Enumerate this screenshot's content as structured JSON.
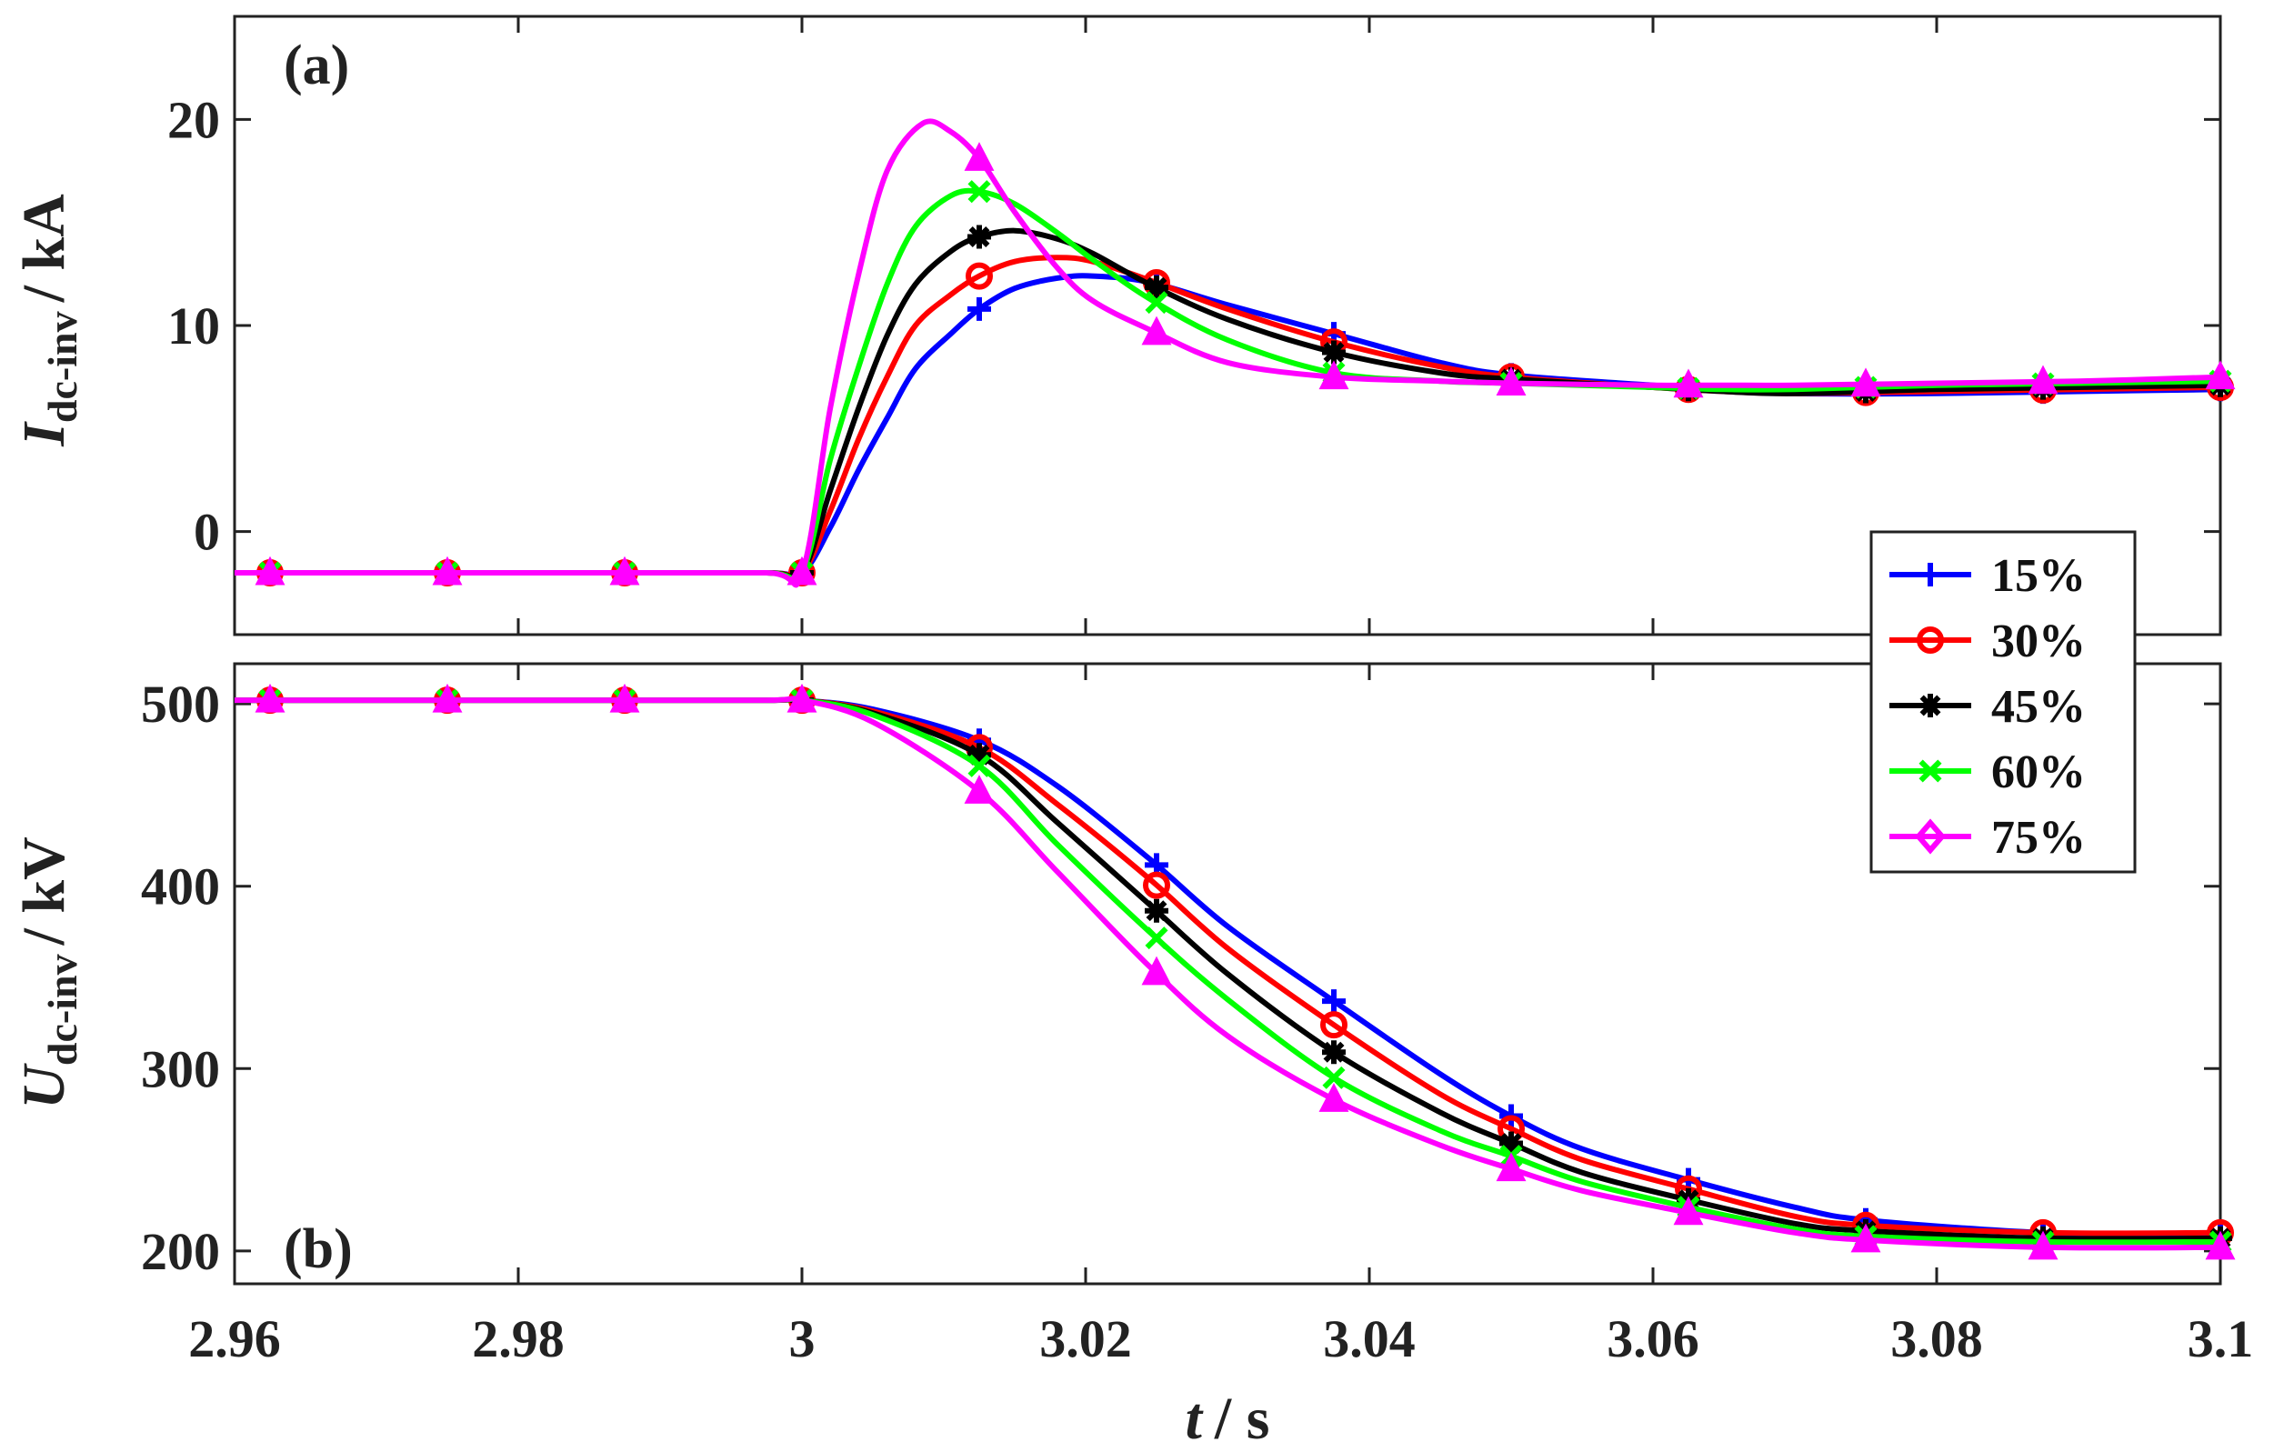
{
  "chart_data": [
    {
      "id": "a",
      "type": "line",
      "panel_label": "(a)",
      "ylabel": {
        "main": "I",
        "sub": "dc-inv",
        "unit": "/ kA"
      },
      "xlim": [
        2.96,
        3.1
      ],
      "ylim": [
        -5,
        25
      ],
      "yticks": [
        0,
        10,
        20
      ],
      "ytick_labels": [
        "0",
        "10",
        "20"
      ],
      "series": [
        {
          "name": "15%",
          "color": "#0000ff",
          "marker": "plus",
          "x": [
            2.96,
            2.9725,
            2.985,
            2.9975,
            3.0,
            3.002,
            3.004,
            3.006,
            3.008,
            3.0105,
            3.0125,
            3.015,
            3.018,
            3.0205,
            3.0245,
            3.03,
            3.0375,
            3.045,
            3.05,
            3.06,
            3.065,
            3.07,
            3.08,
            3.09,
            3.1
          ],
          "y": [
            -2,
            -2,
            -2,
            -2,
            -2,
            0.2,
            3.0,
            5.5,
            7.9,
            9.6,
            10.8,
            11.8,
            12.3,
            12.4,
            12.1,
            11.0,
            9.6,
            8.2,
            7.6,
            7.1,
            6.9,
            6.7,
            6.7,
            6.8,
            6.9
          ]
        },
        {
          "name": "30%",
          "color": "#ff0000",
          "marker": "circle",
          "x": [
            2.96,
            2.9725,
            2.985,
            2.9975,
            3.0,
            3.002,
            3.004,
            3.006,
            3.008,
            3.0105,
            3.0125,
            3.015,
            3.018,
            3.0205,
            3.0245,
            3.03,
            3.0375,
            3.045,
            3.05,
            3.06,
            3.065,
            3.07,
            3.08,
            3.09,
            3.1
          ],
          "y": [
            -2,
            -2,
            -2,
            -2,
            -2,
            1.0,
            4.5,
            7.5,
            10.0,
            11.5,
            12.4,
            13.1,
            13.3,
            13.1,
            12.2,
            10.8,
            9.2,
            8.0,
            7.5,
            7.0,
            6.8,
            6.7,
            6.8,
            6.9,
            7.0
          ]
        },
        {
          "name": "45%",
          "color": "#000000",
          "marker": "asterisk",
          "x": [
            2.96,
            2.9725,
            2.985,
            2.9975,
            3.0,
            3.002,
            3.004,
            3.006,
            3.008,
            3.0105,
            3.0125,
            3.015,
            3.018,
            3.0205,
            3.0245,
            3.03,
            3.0375,
            3.045,
            3.05,
            3.06,
            3.065,
            3.07,
            3.08,
            3.09,
            3.1
          ],
          "y": [
            -2,
            -2,
            -2,
            -2,
            -2,
            2.0,
            6.0,
            9.5,
            12.0,
            13.6,
            14.3,
            14.6,
            14.2,
            13.5,
            12.0,
            10.3,
            8.7,
            7.7,
            7.4,
            7.0,
            6.8,
            6.7,
            6.9,
            7.0,
            7.1
          ]
        },
        {
          "name": "60%",
          "color": "#00ff00",
          "marker": "x",
          "x": [
            2.96,
            2.9725,
            2.985,
            2.9975,
            3.0,
            3.002,
            3.004,
            3.006,
            3.008,
            3.0105,
            3.0125,
            3.015,
            3.018,
            3.0205,
            3.0245,
            3.03,
            3.0375,
            3.045,
            3.05,
            3.06,
            3.065,
            3.07,
            3.08,
            3.09,
            3.1
          ],
          "y": [
            -2,
            -2,
            -2,
            -2,
            -2,
            3.5,
            8.0,
            12.0,
            14.8,
            16.3,
            16.5,
            15.9,
            14.5,
            13.2,
            11.3,
            9.3,
            7.7,
            7.3,
            7.2,
            7.0,
            6.9,
            6.9,
            7.1,
            7.2,
            7.3
          ]
        },
        {
          "name": "75%",
          "color": "#ff00ff",
          "marker": "triangle",
          "x": [
            2.96,
            2.9725,
            2.985,
            2.9975,
            3.0,
            3.002,
            3.004,
            3.006,
            3.0085,
            3.0105,
            3.0125,
            3.015,
            3.018,
            3.0205,
            3.0245,
            3.03,
            3.0375,
            3.045,
            3.05,
            3.06,
            3.065,
            3.07,
            3.08,
            3.09,
            3.1
          ],
          "y": [
            -2,
            -2,
            -2,
            -2,
            -2,
            6.0,
            12.5,
            17.5,
            19.8,
            19.4,
            18.1,
            15.5,
            12.8,
            11.2,
            9.8,
            8.2,
            7.5,
            7.3,
            7.2,
            7.1,
            7.1,
            7.1,
            7.2,
            7.3,
            7.5
          ]
        }
      ]
    },
    {
      "id": "b",
      "type": "line",
      "panel_label": "(b)",
      "ylabel": {
        "main": "U",
        "sub": "dc-inv",
        "unit": "/ kV"
      },
      "xlabel": {
        "main": "t",
        "unit": "/ s"
      },
      "xlim": [
        2.96,
        3.1
      ],
      "ylim": [
        182,
        522
      ],
      "xticks": [
        2.96,
        2.98,
        3.0,
        3.02,
        3.04,
        3.06,
        3.08,
        3.1
      ],
      "xtick_labels": [
        "2.96",
        "2.98",
        "3",
        "3.02",
        "3.04",
        "3.06",
        "3.08",
        "3.1"
      ],
      "yticks": [
        200,
        300,
        400,
        500
      ],
      "ytick_labels": [
        "200",
        "300",
        "400",
        "500"
      ],
      "series": [
        {
          "name": "15%",
          "color": "#0000ff",
          "marker": "plus",
          "x": [
            2.96,
            2.9725,
            2.985,
            2.9975,
            3.0,
            3.005,
            3.0125,
            3.018,
            3.0245,
            3.03,
            3.0375,
            3.045,
            3.05,
            3.055,
            3.0625,
            3.07,
            3.075,
            3.0875,
            3.1
          ],
          "y": [
            502,
            502,
            502,
            502,
            502,
            497,
            480,
            455,
            415,
            378,
            337,
            297,
            274,
            256,
            239,
            224,
            217,
            210,
            208
          ]
        },
        {
          "name": "30%",
          "color": "#ff0000",
          "marker": "circle",
          "x": [
            2.96,
            2.9725,
            2.985,
            2.9975,
            3.0,
            3.005,
            3.0125,
            3.018,
            3.0245,
            3.03,
            3.0375,
            3.045,
            3.05,
            3.055,
            3.0625,
            3.07,
            3.075,
            3.0875,
            3.1
          ],
          "y": [
            502,
            502,
            502,
            502,
            502,
            496,
            476,
            445,
            404,
            366,
            324,
            286,
            267,
            250,
            234,
            219,
            214,
            210,
            210
          ]
        },
        {
          "name": "45%",
          "color": "#000000",
          "marker": "asterisk",
          "x": [
            2.96,
            2.9725,
            2.985,
            2.9975,
            3.0,
            3.005,
            3.0125,
            3.018,
            3.0245,
            3.03,
            3.0375,
            3.045,
            3.05,
            3.055,
            3.0625,
            3.07,
            3.075,
            3.0875,
            3.1
          ],
          "y": [
            502,
            502,
            502,
            502,
            502,
            495,
            472,
            435,
            390,
            352,
            309,
            276,
            259,
            243,
            228,
            215,
            211,
            207,
            207
          ]
        },
        {
          "name": "60%",
          "color": "#00ff00",
          "marker": "x",
          "x": [
            2.96,
            2.9725,
            2.985,
            2.9975,
            3.0,
            3.005,
            3.0125,
            3.018,
            3.0245,
            3.03,
            3.0375,
            3.045,
            3.05,
            3.055,
            3.0625,
            3.07,
            3.075,
            3.0875,
            3.1
          ],
          "y": [
            502,
            502,
            502,
            502,
            502,
            494,
            466,
            423,
            375,
            338,
            295,
            266,
            252,
            238,
            224,
            212,
            208,
            205,
            205
          ]
        },
        {
          "name": "75%",
          "color": "#ff00ff",
          "marker": "triangle",
          "x": [
            2.96,
            2.9725,
            2.985,
            2.9975,
            3.0,
            3.005,
            3.0125,
            3.018,
            3.0245,
            3.03,
            3.0375,
            3.045,
            3.05,
            3.055,
            3.0625,
            3.07,
            3.075,
            3.0875,
            3.1
          ],
          "y": [
            502,
            502,
            502,
            502,
            502,
            490,
            452,
            408,
            356,
            318,
            283,
            258,
            245,
            233,
            221,
            210,
            206,
            202,
            202
          ]
        }
      ]
    }
  ],
  "legend": {
    "placement": "right, between panels",
    "entries": [
      "15%",
      "30%",
      "45%",
      "60%",
      "75%"
    ]
  },
  "marker_x": [
    2.9625,
    2.975,
    2.9875,
    3.0,
    3.0125,
    3.025,
    3.0375,
    3.05,
    3.0625,
    3.075,
    3.0875,
    3.1
  ]
}
